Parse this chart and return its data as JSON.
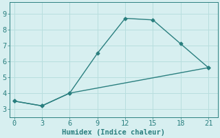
{
  "line1_x": [
    0,
    3,
    6,
    9,
    12,
    15,
    18,
    21
  ],
  "line1_y": [
    3.5,
    3.2,
    4.0,
    6.5,
    8.7,
    8.6,
    7.1,
    5.6
  ],
  "line2_x": [
    0,
    3,
    6,
    21
  ],
  "line2_y": [
    3.5,
    3.2,
    4.0,
    5.6
  ],
  "line_color": "#2a7f7f",
  "bg_color": "#d7eff0",
  "grid_color": "#b8dede",
  "xlabel": "Humidex (Indice chaleur)",
  "xlim": [
    -0.5,
    22
  ],
  "ylim": [
    2.5,
    9.7
  ],
  "xticks": [
    0,
    3,
    6,
    9,
    12,
    15,
    18,
    21
  ],
  "yticks": [
    3,
    4,
    5,
    6,
    7,
    8,
    9
  ],
  "marker": "D",
  "markersize": 2.5,
  "linewidth": 1.0,
  "xlabel_fontsize": 7.5,
  "tick_fontsize": 7.5
}
